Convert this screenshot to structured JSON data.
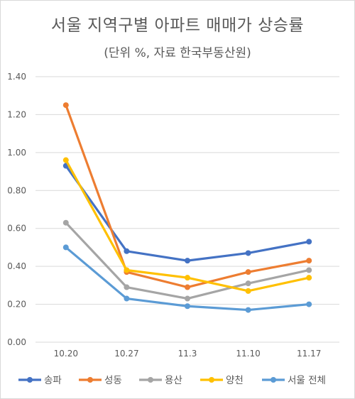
{
  "chart_data": {
    "type": "line",
    "title": "서울 지역구별 아파트 매매가 상승률",
    "subtitle": "(단위 %, 자료 한국부동산원)",
    "categories": [
      "10.20",
      "10.27",
      "11.3",
      "11.10",
      "11.17"
    ],
    "ylim": [
      0,
      1.4
    ],
    "yticks": [
      "0.00",
      "0.20",
      "0.40",
      "0.60",
      "0.80",
      "1.00",
      "1.20",
      "1.40"
    ],
    "grid": true,
    "legend": "bottom",
    "series": [
      {
        "name": "송파",
        "color": "#4472c4",
        "values": [
          0.93,
          0.48,
          0.43,
          0.47,
          0.53
        ]
      },
      {
        "name": "성동",
        "color": "#ed7d31",
        "values": [
          1.25,
          0.37,
          0.29,
          0.37,
          0.43
        ]
      },
      {
        "name": "용산",
        "color": "#a5a5a5",
        "values": [
          0.63,
          0.29,
          0.23,
          0.31,
          0.38
        ]
      },
      {
        "name": "양천",
        "color": "#ffc000",
        "values": [
          0.96,
          0.38,
          0.34,
          0.27,
          0.34
        ]
      },
      {
        "name": "서울 전체",
        "color": "#5b9bd5",
        "values": [
          0.5,
          0.23,
          0.19,
          0.17,
          0.2
        ]
      }
    ]
  }
}
